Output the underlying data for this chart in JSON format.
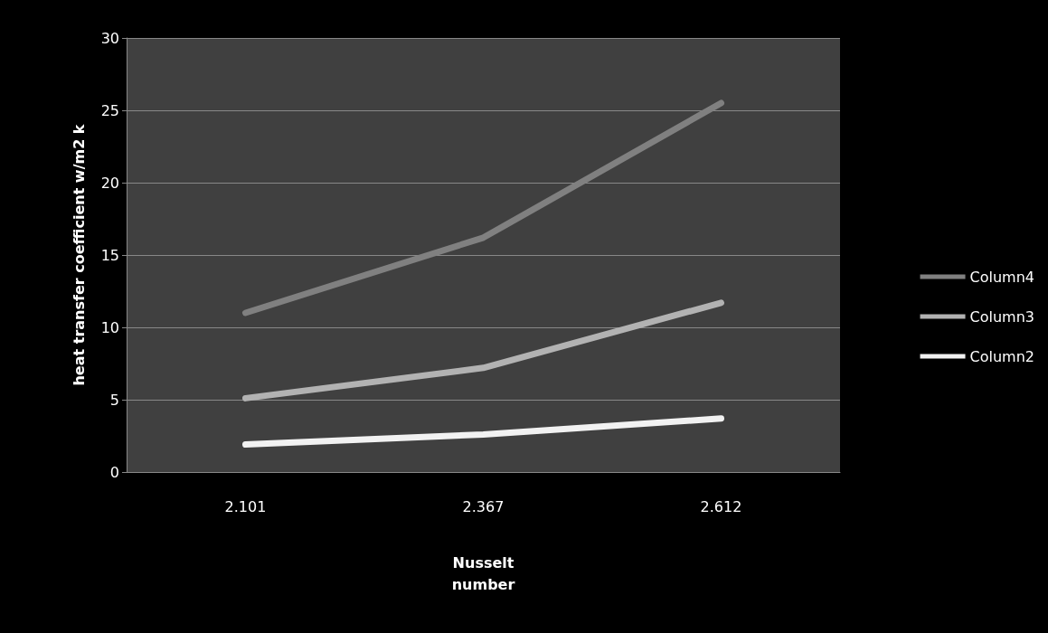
{
  "chart_data": {
    "type": "line",
    "xlabel": "Nusselt\nnumber",
    "ylabel": "heat transfer coefficient w/m2 k",
    "categories": [
      "2.101",
      "2.367",
      "2.612"
    ],
    "series": [
      {
        "name": "Column4",
        "color": "#808080",
        "values": [
          11.0,
          16.2,
          25.5
        ]
      },
      {
        "name": "Column3",
        "color": "#b2b2b2",
        "values": [
          5.1,
          7.2,
          11.7
        ]
      },
      {
        "name": "Column2",
        "color": "#f2f2f2",
        "values": [
          1.9,
          2.6,
          3.7
        ]
      }
    ],
    "ylim": [
      0,
      30
    ],
    "yticks": [
      0,
      5,
      10,
      15,
      20,
      25,
      30
    ],
    "grid": "y",
    "legend": "right",
    "marker": "none",
    "line_style": "solid"
  }
}
